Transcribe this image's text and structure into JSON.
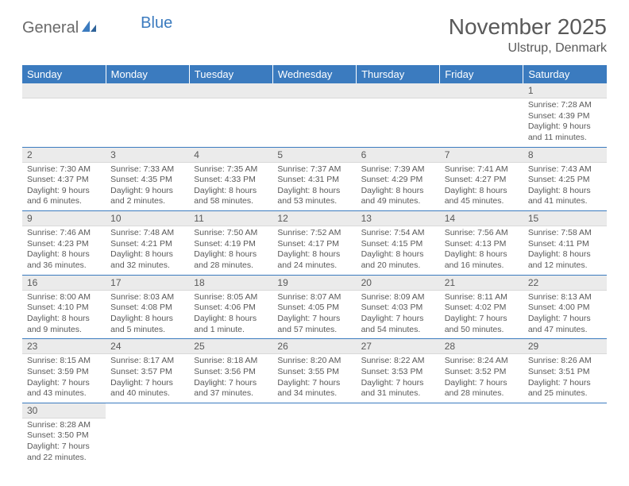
{
  "logo": {
    "part1": "General",
    "part2": "Blue"
  },
  "title": "November 2025",
  "location": "Ulstrup, Denmark",
  "colors": {
    "header_bg": "#3b7bbf",
    "header_text": "#ffffff",
    "daynum_bg": "#ebebeb",
    "text": "#595959",
    "rule": "#3b7bbf"
  },
  "weekdays": [
    "Sunday",
    "Monday",
    "Tuesday",
    "Wednesday",
    "Thursday",
    "Friday",
    "Saturday"
  ],
  "weeks": [
    [
      null,
      null,
      null,
      null,
      null,
      null,
      {
        "n": "1",
        "sr": "Sunrise: 7:28 AM",
        "ss": "Sunset: 4:39 PM",
        "dl": "Daylight: 9 hours and 11 minutes."
      }
    ],
    [
      {
        "n": "2",
        "sr": "Sunrise: 7:30 AM",
        "ss": "Sunset: 4:37 PM",
        "dl": "Daylight: 9 hours and 6 minutes."
      },
      {
        "n": "3",
        "sr": "Sunrise: 7:33 AM",
        "ss": "Sunset: 4:35 PM",
        "dl": "Daylight: 9 hours and 2 minutes."
      },
      {
        "n": "4",
        "sr": "Sunrise: 7:35 AM",
        "ss": "Sunset: 4:33 PM",
        "dl": "Daylight: 8 hours and 58 minutes."
      },
      {
        "n": "5",
        "sr": "Sunrise: 7:37 AM",
        "ss": "Sunset: 4:31 PM",
        "dl": "Daylight: 8 hours and 53 minutes."
      },
      {
        "n": "6",
        "sr": "Sunrise: 7:39 AM",
        "ss": "Sunset: 4:29 PM",
        "dl": "Daylight: 8 hours and 49 minutes."
      },
      {
        "n": "7",
        "sr": "Sunrise: 7:41 AM",
        "ss": "Sunset: 4:27 PM",
        "dl": "Daylight: 8 hours and 45 minutes."
      },
      {
        "n": "8",
        "sr": "Sunrise: 7:43 AM",
        "ss": "Sunset: 4:25 PM",
        "dl": "Daylight: 8 hours and 41 minutes."
      }
    ],
    [
      {
        "n": "9",
        "sr": "Sunrise: 7:46 AM",
        "ss": "Sunset: 4:23 PM",
        "dl": "Daylight: 8 hours and 36 minutes."
      },
      {
        "n": "10",
        "sr": "Sunrise: 7:48 AM",
        "ss": "Sunset: 4:21 PM",
        "dl": "Daylight: 8 hours and 32 minutes."
      },
      {
        "n": "11",
        "sr": "Sunrise: 7:50 AM",
        "ss": "Sunset: 4:19 PM",
        "dl": "Daylight: 8 hours and 28 minutes."
      },
      {
        "n": "12",
        "sr": "Sunrise: 7:52 AM",
        "ss": "Sunset: 4:17 PM",
        "dl": "Daylight: 8 hours and 24 minutes."
      },
      {
        "n": "13",
        "sr": "Sunrise: 7:54 AM",
        "ss": "Sunset: 4:15 PM",
        "dl": "Daylight: 8 hours and 20 minutes."
      },
      {
        "n": "14",
        "sr": "Sunrise: 7:56 AM",
        "ss": "Sunset: 4:13 PM",
        "dl": "Daylight: 8 hours and 16 minutes."
      },
      {
        "n": "15",
        "sr": "Sunrise: 7:58 AM",
        "ss": "Sunset: 4:11 PM",
        "dl": "Daylight: 8 hours and 12 minutes."
      }
    ],
    [
      {
        "n": "16",
        "sr": "Sunrise: 8:00 AM",
        "ss": "Sunset: 4:10 PM",
        "dl": "Daylight: 8 hours and 9 minutes."
      },
      {
        "n": "17",
        "sr": "Sunrise: 8:03 AM",
        "ss": "Sunset: 4:08 PM",
        "dl": "Daylight: 8 hours and 5 minutes."
      },
      {
        "n": "18",
        "sr": "Sunrise: 8:05 AM",
        "ss": "Sunset: 4:06 PM",
        "dl": "Daylight: 8 hours and 1 minute."
      },
      {
        "n": "19",
        "sr": "Sunrise: 8:07 AM",
        "ss": "Sunset: 4:05 PM",
        "dl": "Daylight: 7 hours and 57 minutes."
      },
      {
        "n": "20",
        "sr": "Sunrise: 8:09 AM",
        "ss": "Sunset: 4:03 PM",
        "dl": "Daylight: 7 hours and 54 minutes."
      },
      {
        "n": "21",
        "sr": "Sunrise: 8:11 AM",
        "ss": "Sunset: 4:02 PM",
        "dl": "Daylight: 7 hours and 50 minutes."
      },
      {
        "n": "22",
        "sr": "Sunrise: 8:13 AM",
        "ss": "Sunset: 4:00 PM",
        "dl": "Daylight: 7 hours and 47 minutes."
      }
    ],
    [
      {
        "n": "23",
        "sr": "Sunrise: 8:15 AM",
        "ss": "Sunset: 3:59 PM",
        "dl": "Daylight: 7 hours and 43 minutes."
      },
      {
        "n": "24",
        "sr": "Sunrise: 8:17 AM",
        "ss": "Sunset: 3:57 PM",
        "dl": "Daylight: 7 hours and 40 minutes."
      },
      {
        "n": "25",
        "sr": "Sunrise: 8:18 AM",
        "ss": "Sunset: 3:56 PM",
        "dl": "Daylight: 7 hours and 37 minutes."
      },
      {
        "n": "26",
        "sr": "Sunrise: 8:20 AM",
        "ss": "Sunset: 3:55 PM",
        "dl": "Daylight: 7 hours and 34 minutes."
      },
      {
        "n": "27",
        "sr": "Sunrise: 8:22 AM",
        "ss": "Sunset: 3:53 PM",
        "dl": "Daylight: 7 hours and 31 minutes."
      },
      {
        "n": "28",
        "sr": "Sunrise: 8:24 AM",
        "ss": "Sunset: 3:52 PM",
        "dl": "Daylight: 7 hours and 28 minutes."
      },
      {
        "n": "29",
        "sr": "Sunrise: 8:26 AM",
        "ss": "Sunset: 3:51 PM",
        "dl": "Daylight: 7 hours and 25 minutes."
      }
    ],
    [
      {
        "n": "30",
        "sr": "Sunrise: 8:28 AM",
        "ss": "Sunset: 3:50 PM",
        "dl": "Daylight: 7 hours and 22 minutes."
      },
      null,
      null,
      null,
      null,
      null,
      null
    ]
  ]
}
